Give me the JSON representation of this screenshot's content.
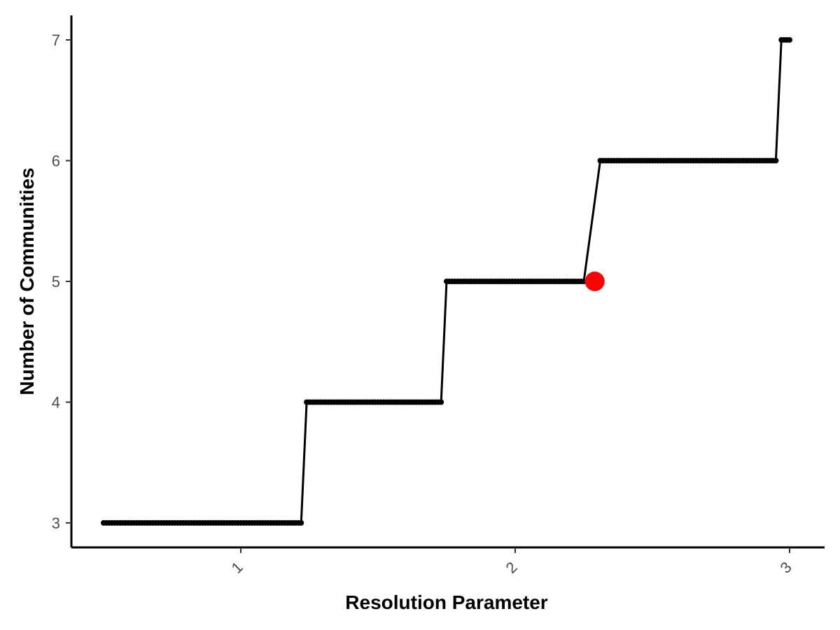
{
  "chart_data": {
    "type": "line",
    "xlabel": "Resolution Parameter",
    "ylabel": "Number of Communities",
    "xlim": [
      0.45,
      3.12
    ],
    "ylim": [
      2.8,
      7.2
    ],
    "x_ticks": [
      1,
      2,
      3
    ],
    "y_ticks": [
      3,
      4,
      5,
      6,
      7
    ],
    "grid": false,
    "legend": "none",
    "line_color": "#000000",
    "point_color": "#000000",
    "highlight_color": "#ff0000",
    "steps": [
      {
        "x_start": 0.5,
        "x_end": 1.22,
        "y": 3
      },
      {
        "x_start": 1.24,
        "x_end": 1.73,
        "y": 4
      },
      {
        "x_start": 1.75,
        "x_end": 2.25,
        "y": 5
      },
      {
        "x_start": 2.31,
        "x_end": 2.95,
        "y": 6
      },
      {
        "x_start": 2.97,
        "x_end": 3.0,
        "y": 7
      }
    ],
    "x_step": 0.01,
    "highlight_point": {
      "x": 2.29,
      "y": 5
    }
  }
}
